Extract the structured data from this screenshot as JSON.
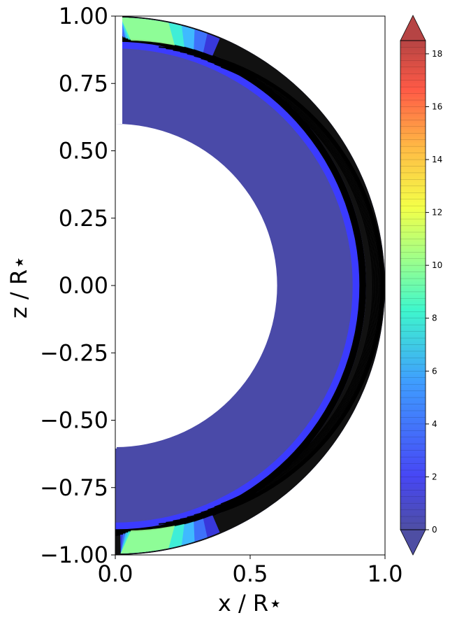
{
  "chart_data": {
    "type": "contour",
    "xlabel": "x / R⋆",
    "ylabel": "z / R⋆",
    "xlim": [
      0.0,
      1.0
    ],
    "ylim": [
      -1.0,
      1.0
    ],
    "x_ticks": [
      "0.0",
      "0.5",
      "1.0"
    ],
    "y_ticks": [
      "1.00",
      "0.75",
      "0.50",
      "0.25",
      "0.00",
      "−0.25",
      "−0.50",
      "−0.75",
      "−1.00"
    ],
    "grid": false,
    "inner_radius": 0.6,
    "outer_radius": 1.0,
    "colorbar": {
      "colormap": "jet",
      "range": [
        0,
        18.5
      ],
      "extend": "both",
      "ticks": [
        "0",
        "2",
        "4",
        "6",
        "8",
        "10",
        "12",
        "14",
        "16",
        "18"
      ]
    },
    "contours": {
      "line_color": "#000000",
      "field_lines_count": 10
    },
    "colors": {
      "low_fill": "#4a4aa8",
      "background": "#ffffff"
    }
  }
}
